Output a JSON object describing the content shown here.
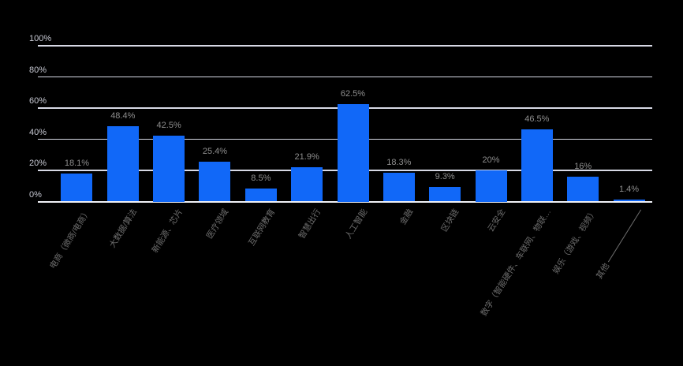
{
  "page": {
    "background": "#000000"
  },
  "chart_data": {
    "type": "bar",
    "title": "",
    "categories": [
      "电商（微商/电商）",
      "大数据/算法",
      "新能源、芯片",
      "医疗领域",
      "互联网教育",
      "智慧出行",
      "人工智能",
      "金融",
      "区块链",
      "云安全",
      "数字（智能硬件、车联网、物联…",
      "娱乐（游戏、视频）",
      "其他"
    ],
    "values": [
      18.1,
      48.4,
      42.5,
      25.4,
      8.5,
      21.9,
      62.5,
      18.3,
      9.3,
      20,
      46.5,
      16,
      1.4
    ],
    "value_labels": [
      "18.1%",
      "48.4%",
      "42.5%",
      "25.4%",
      "8.5%",
      "21.9%",
      "62.5%",
      "18.3%",
      "9.3%",
      "20%",
      "46.5%",
      "16%",
      "1.4%"
    ],
    "xlabel": "",
    "ylabel": "",
    "y_axis": {
      "min": 0,
      "max": 100,
      "tick_values": [
        0,
        20,
        40,
        60,
        80,
        100
      ],
      "tick_labels": [
        "0%",
        "20%",
        "40%",
        "60%",
        "80%",
        "100%"
      ],
      "grid": true
    },
    "legend": "none",
    "colors": {
      "background": "#000000",
      "bar": "#1168f8",
      "gridline": "#d7d9e5",
      "axis_line": "#f0f1f7",
      "y_tick_label": "#c6c8d2",
      "value_label": "#8e8e8e",
      "category_label": "#6d6d6d"
    },
    "annotations": [
      {
        "type": "leader-line",
        "category": "其他"
      }
    ]
  }
}
